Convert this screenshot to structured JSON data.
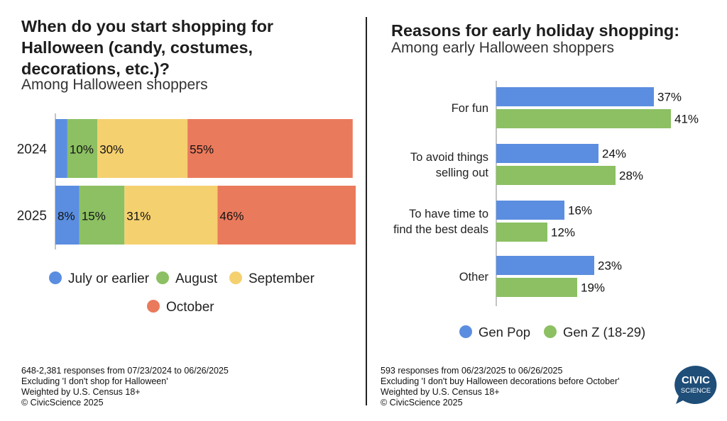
{
  "left_panel": {
    "title": "When do you start shopping for Halloween (candy, costumes, decorations, etc.)?",
    "subtitle": "Among Halloween shoppers",
    "footnote": [
      "648-2,381 responses from 07/23/2024 to 06/26/2025",
      "Excluding 'I don't shop for Halloween'",
      "Weighted by U.S. Census 18+",
      "© CivicScience 2025"
    ]
  },
  "right_panel": {
    "title": "Reasons for early holiday shopping:",
    "subtitle": "Among early Halloween shoppers",
    "footnote": [
      "593 responses from 06/23/2025 to 06/26/2025",
      "Excluding 'I don't buy Halloween decorations before October'",
      "Weighted by U.S. Census 18+",
      "© CivicScience 2025"
    ]
  },
  "logo": {
    "line1": "CIVIC",
    "line2": "SCIENCE",
    "color": "#1f4e79"
  },
  "chart_data": [
    {
      "type": "bar",
      "orientation": "horizontal",
      "stacked": true,
      "title": "When do you start shopping for Halloween (candy, costumes, decorations, etc.)?",
      "categories": [
        "2024",
        "2025"
      ],
      "series": [
        {
          "name": "July or earlier",
          "color": "#5b8ee0",
          "values": [
            4,
            8
          ],
          "labels": [
            "",
            "8%"
          ]
        },
        {
          "name": "August",
          "color": "#8cc063",
          "values": [
            10,
            15
          ],
          "labels": [
            "10%",
            "15%"
          ]
        },
        {
          "name": "September",
          "color": "#f5d06f",
          "values": [
            30,
            31
          ],
          "labels": [
            "30%",
            "31%"
          ]
        },
        {
          "name": "October",
          "color": "#ea7a5c",
          "values": [
            55,
            46
          ],
          "labels": [
            "55%",
            "46%"
          ]
        }
      ],
      "xlim": [
        0,
        100
      ],
      "legend": "bottom"
    },
    {
      "type": "bar",
      "orientation": "horizontal",
      "stacked": false,
      "title": "Reasons for early holiday shopping:",
      "categories": [
        "For fun",
        "To avoid things selling out",
        "To have time to find the best deals",
        "Other"
      ],
      "category_lines": [
        [
          "For fun"
        ],
        [
          "To avoid things",
          "selling out"
        ],
        [
          "To have time to",
          "find the best deals"
        ],
        [
          "Other"
        ]
      ],
      "series": [
        {
          "name": "Gen Pop",
          "color": "#5b8ee0",
          "values": [
            37,
            24,
            16,
            23
          ],
          "labels": [
            "37%",
            "24%",
            "16%",
            "23%"
          ]
        },
        {
          "name": "Gen Z (18-29)",
          "color": "#8cc063",
          "values": [
            41,
            28,
            12,
            19
          ],
          "labels": [
            "41%",
            "28%",
            "12%",
            "19%"
          ]
        }
      ],
      "xlim": [
        0,
        45
      ],
      "legend": "bottom"
    }
  ]
}
